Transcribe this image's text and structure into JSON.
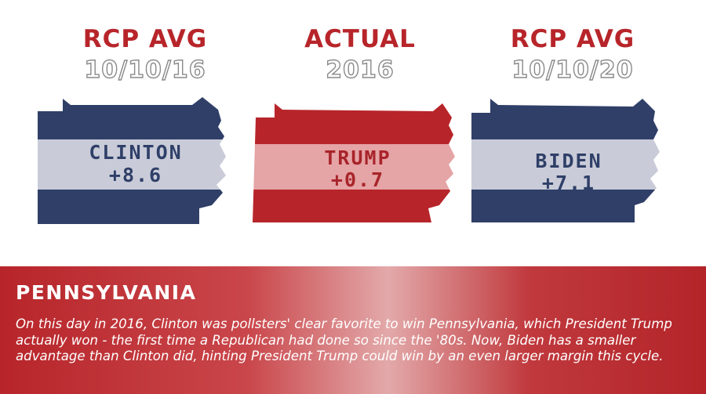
{
  "colors": {
    "title_red": "#b7252a",
    "date_gray": "#8a8a8a",
    "navy": "#2f3f68",
    "light_band": "#c9ccd8",
    "red": "#b7252a",
    "pink_band": "#e5a4a6",
    "label_navy": "#2f3f68",
    "label_red": "#a8242a"
  },
  "cards": [
    {
      "title": "RCP AVG",
      "date": "10/10/16",
      "candidate": "CLINTON",
      "margin": "+8.6",
      "theme": "blue"
    },
    {
      "title": "ACTUAL",
      "date": "2016",
      "candidate": "TRUMP",
      "margin": "+0.7",
      "theme": "red"
    },
    {
      "title": "RCP AVG",
      "date": "10/10/20",
      "candidate": "BIDEN",
      "margin": "+7.1",
      "theme": "blue"
    }
  ],
  "footer": {
    "heading": "PENNSYLVANIA",
    "text": "On this day in 2016, Clinton was pollsters' clear favorite to win Pennsylvania, which President Trump actually won - the first time a  Republican had done so since the '80s. Now, Biden has a smaller advantage than Clinton did, hinting President Trump could win by an even larger margin this cycle."
  }
}
